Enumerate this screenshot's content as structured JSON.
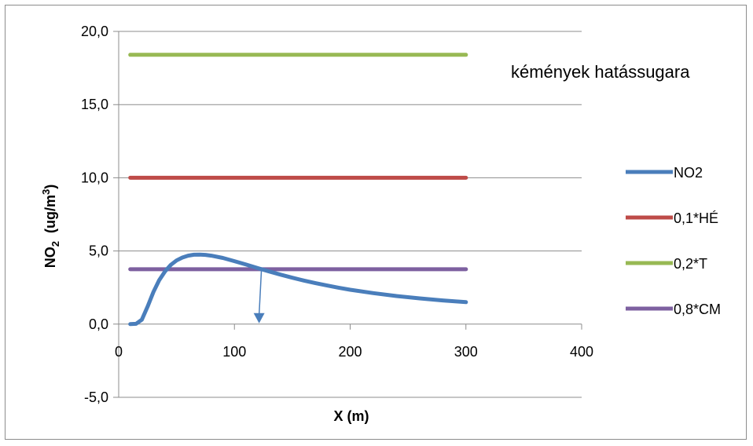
{
  "chart_data": {
    "type": "line",
    "xlabel": "X (m)",
    "ylabel_main": "NO",
    "ylabel_sub": "2",
    "ylabel_unit_pre": "(ug/m",
    "ylabel_unit_sup": "3",
    "ylabel_unit_post": ")",
    "xlim": [
      0,
      400
    ],
    "ylim": [
      -5,
      20
    ],
    "x_ticks": [
      0,
      100,
      200,
      300,
      400
    ],
    "x_tick_labels": [
      "0",
      "100",
      "200",
      "300",
      "400"
    ],
    "y_ticks": [
      -5,
      0,
      5,
      10,
      15,
      20
    ],
    "y_tick_labels": [
      "-5,0",
      "0,0",
      "5,0",
      "10,0",
      "15,0",
      "20,0"
    ],
    "grid": "horizontal",
    "legend_position": "right",
    "annotation": "kémények hatássugara",
    "series": [
      {
        "name": "NO2",
        "color": "#4a7ebb",
        "x": [
          10,
          15,
          20,
          25,
          30,
          35,
          40,
          45,
          50,
          55,
          60,
          65,
          70,
          75,
          80,
          90,
          100,
          110,
          120,
          130,
          140,
          150,
          160,
          170,
          180,
          190,
          200,
          220,
          240,
          260,
          280,
          300
        ],
        "y": [
          0.0,
          0.02,
          0.3,
          1.2,
          2.2,
          3.0,
          3.6,
          4.05,
          4.35,
          4.55,
          4.68,
          4.74,
          4.75,
          4.73,
          4.68,
          4.52,
          4.3,
          4.07,
          3.83,
          3.6,
          3.38,
          3.17,
          2.98,
          2.8,
          2.64,
          2.49,
          2.35,
          2.12,
          1.92,
          1.76,
          1.62,
          1.5
        ]
      },
      {
        "name": "0,1*HÉ",
        "color": "#be4b48",
        "x": [
          10,
          300
        ],
        "y": [
          10.0,
          10.0
        ]
      },
      {
        "name": "0,2*T",
        "color": "#98b954",
        "x": [
          10,
          300
        ],
        "y": [
          18.4,
          18.4
        ]
      },
      {
        "name": "0,8*CM",
        "color": "#7d60a0",
        "x": [
          10,
          300
        ],
        "y": [
          3.75,
          3.75
        ]
      }
    ],
    "arrow": {
      "color": "#4a7ebb",
      "x": 122,
      "y_start": 3.75,
      "y_end": 0.0
    }
  }
}
